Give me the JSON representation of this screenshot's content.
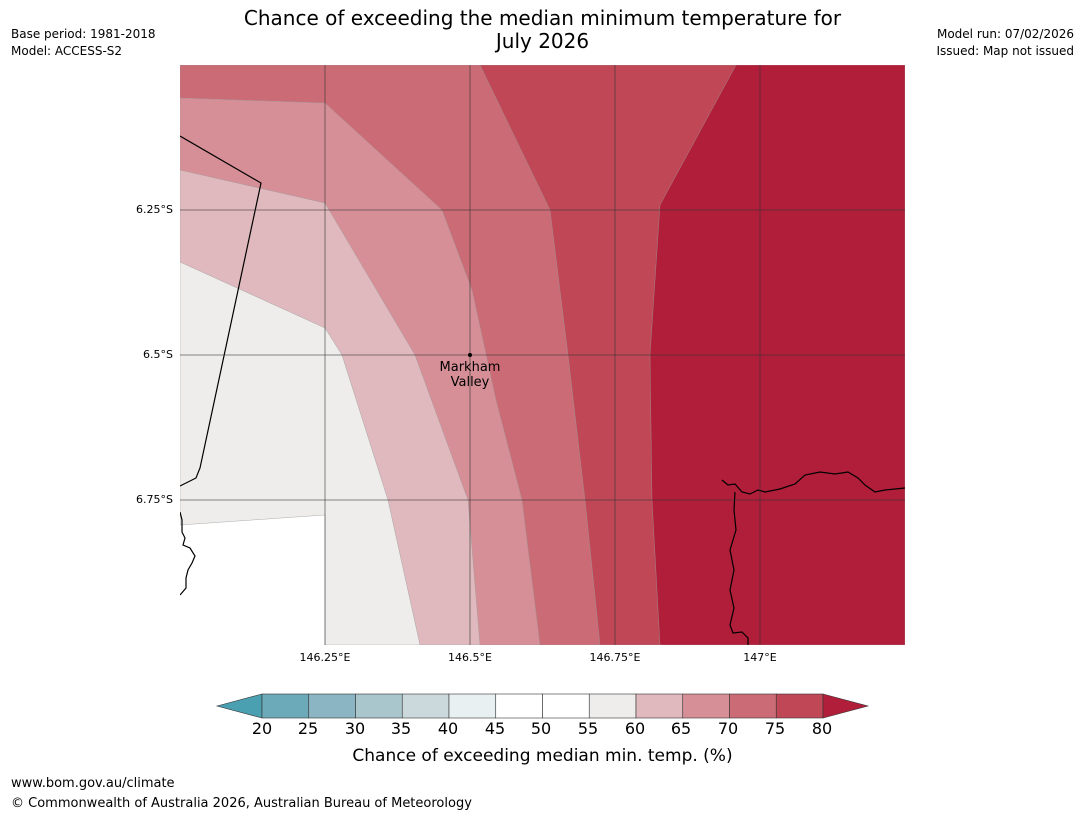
{
  "header": {
    "title_line1": "Chance of exceeding the median minimum temperature for",
    "title_line2": "July 2026",
    "base_period": "Base period: 1981-2018",
    "model": "Model: ACCESS-S2",
    "model_run": "Model run: 07/02/2026",
    "issued": "Issued: Map not issued"
  },
  "map": {
    "lat_labels": [
      "6.25°S",
      "6.5°S",
      "6.75°S"
    ],
    "lon_labels": [
      "146.25°E",
      "146.5°E",
      "146.75°E",
      "147°E"
    ],
    "place": {
      "name_line1": "Markham",
      "name_line2": "Valley",
      "lon": 146.5,
      "lat": -6.5
    },
    "extent": {
      "lon_min": 146.0,
      "lon_max": 147.25,
      "lat_min": -7.0,
      "lat_max": -6.0
    },
    "band_colors": [
      "#eeedeb",
      "#e0b9be",
      "#d68f97",
      "#cb6b75",
      "#c04856",
      "#b11e39"
    ],
    "band_ranges": [
      "55-60",
      "60-65",
      "65-70",
      "70-75",
      "75-80",
      ">80"
    ]
  },
  "colorbar": {
    "title": "Chance of exceeding median min. temp. (%)",
    "ticks": [
      "20",
      "25",
      "30",
      "35",
      "40",
      "45",
      "50",
      "55",
      "60",
      "65",
      "70",
      "75",
      "80"
    ],
    "under_color": "#4a9fb0",
    "over_color": "#b11e39",
    "colors": [
      "#6daab9",
      "#8cb5c3",
      "#a8c6cc",
      "#ccd9dc",
      "#e9f0f1",
      "#ffffff",
      "#ffffff",
      "#eeedeb",
      "#e0b9be",
      "#d68f97",
      "#cb6b75",
      "#c04856"
    ]
  },
  "footer": {
    "url": "www.bom.gov.au/climate",
    "copyright": "© Commonwealth of Australia 2026, Australian Bureau of Meteorology"
  }
}
